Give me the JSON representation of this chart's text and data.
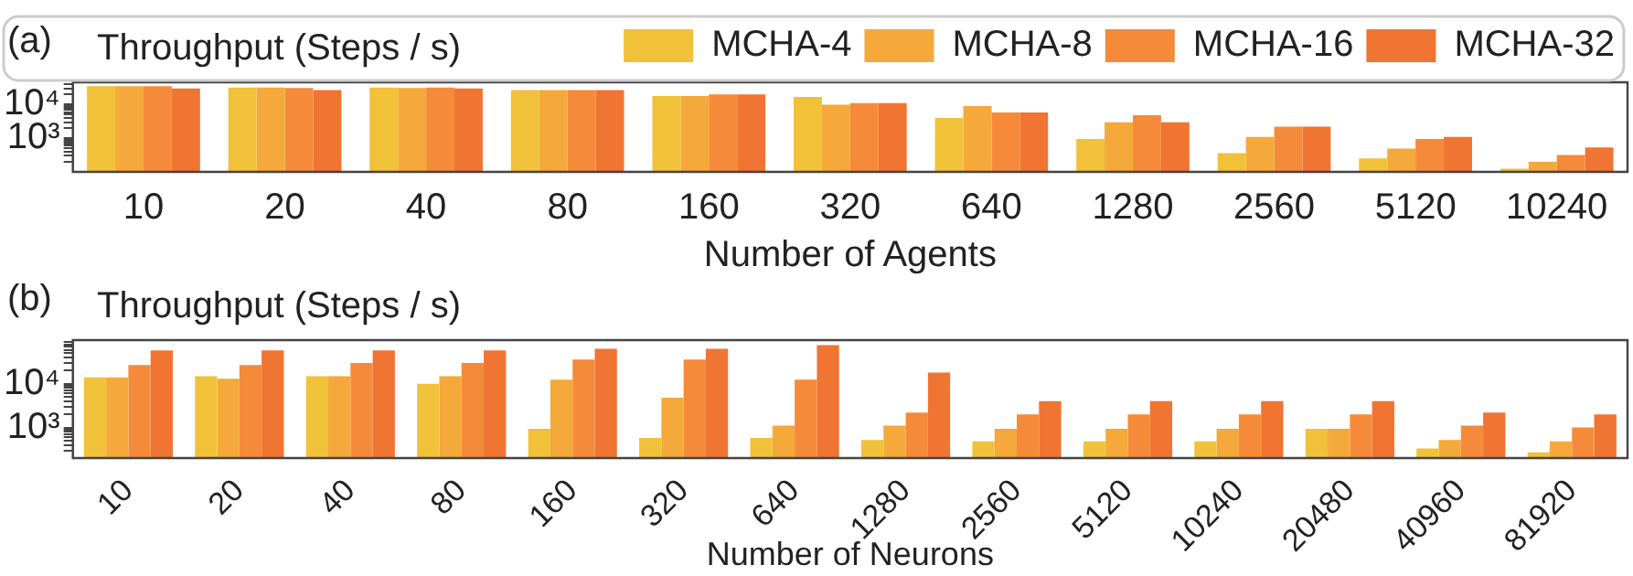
{
  "chart_data": [
    {
      "type": "bar",
      "title": "(a)",
      "ylabel": "Throughput (Steps / s)",
      "xlabel": "Number of Agents",
      "log": true,
      "legend": "top right",
      "categories": [
        "10",
        "20",
        "40",
        "80",
        "160",
        "320",
        "640",
        "1280",
        "2560",
        "5120",
        "10240"
      ],
      "ylim": [
        100,
        46000
      ],
      "yticks": [
        {
          "value": 200,
          "label": null
        },
        {
          "value": 300,
          "label": null
        },
        {
          "value": 400,
          "label": null
        },
        {
          "value": 500,
          "label": null
        },
        {
          "value": 600,
          "label": null
        },
        {
          "value": 700,
          "label": null
        },
        {
          "value": 800,
          "label": null
        },
        {
          "value": 900,
          "label": null
        },
        {
          "value": 1000,
          "label": "10³"
        },
        {
          "value": 2000,
          "label": null
        },
        {
          "value": 3000,
          "label": null
        },
        {
          "value": 4000,
          "label": null
        },
        {
          "value": 5000,
          "label": null
        },
        {
          "value": 6000,
          "label": null
        },
        {
          "value": 7000,
          "label": null
        },
        {
          "value": 8000,
          "label": null
        },
        {
          "value": 9000,
          "label": null
        },
        {
          "value": 10000,
          "label": "10⁴"
        },
        {
          "value": 20000,
          "label": null
        },
        {
          "value": 30000,
          "label": null
        },
        {
          "value": 40000,
          "label": null
        }
      ],
      "series": [
        {
          "name": "MCHA-4",
          "color": "#f2c13a",
          "values": [
            35000,
            32000,
            32000,
            27000,
            18000,
            17000,
            4000,
            950,
            360,
            250,
            125
          ]
        },
        {
          "name": "MCHA-8",
          "color": "#f4a93a",
          "values": [
            35000,
            32000,
            31000,
            27000,
            18000,
            10000,
            9000,
            3000,
            1100,
            490,
            200
          ]
        },
        {
          "name": "MCHA-16",
          "color": "#f58b3a",
          "values": [
            35000,
            31000,
            32000,
            27000,
            20000,
            11000,
            5800,
            4800,
            2200,
            950,
            320
          ]
        },
        {
          "name": "MCHA-32",
          "color": "#f07432",
          "values": [
            30000,
            27000,
            30000,
            27000,
            20000,
            11000,
            5800,
            3000,
            2200,
            1100,
            530
          ]
        }
      ]
    },
    {
      "type": "bar",
      "title": "(b)",
      "ylabel": "Throughput (Steps / s)",
      "xlabel": "Number of Neurons",
      "log": true,
      "categories": [
        "10",
        "20",
        "40",
        "80",
        "160",
        "320",
        "640",
        "1280",
        "2560",
        "5120",
        "10240",
        "20480",
        "40960",
        "81920"
      ],
      "ylim": [
        200,
        100000
      ],
      "yticks": [
        {
          "value": 300,
          "label": null
        },
        {
          "value": 400,
          "label": null
        },
        {
          "value": 500,
          "label": null
        },
        {
          "value": 600,
          "label": null
        },
        {
          "value": 700,
          "label": null
        },
        {
          "value": 800,
          "label": null
        },
        {
          "value": 900,
          "label": null
        },
        {
          "value": 1000,
          "label": "10³"
        },
        {
          "value": 2000,
          "label": null
        },
        {
          "value": 3000,
          "label": null
        },
        {
          "value": 4000,
          "label": null
        },
        {
          "value": 5000,
          "label": null
        },
        {
          "value": 6000,
          "label": null
        },
        {
          "value": 7000,
          "label": null
        },
        {
          "value": 8000,
          "label": null
        },
        {
          "value": 9000,
          "label": null
        },
        {
          "value": 10000,
          "label": "10⁴"
        },
        {
          "value": 20000,
          "label": null
        },
        {
          "value": 30000,
          "label": null
        },
        {
          "value": 40000,
          "label": null
        },
        {
          "value": 50000,
          "label": null
        },
        {
          "value": 60000,
          "label": null
        },
        {
          "value": 70000,
          "label": null
        },
        {
          "value": 80000,
          "label": null
        },
        {
          "value": 90000,
          "label": null
        }
      ],
      "series": [
        {
          "color": "#f2c13a",
          "values": [
            14000,
            15000,
            15000,
            10000,
            940,
            580,
            580,
            520,
            480,
            480,
            480,
            940,
            330,
            270
          ]
        },
        {
          "color": "#f4a93a",
          "values": [
            14000,
            13000,
            15000,
            15000,
            12500,
            4800,
            1100,
            1100,
            940,
            940,
            940,
            940,
            520,
            480
          ]
        },
        {
          "color": "#f58b3a",
          "values": [
            27000,
            27000,
            30000,
            30000,
            36000,
            36000,
            12500,
            2200,
            2000,
            2000,
            2000,
            2000,
            1100,
            1000
          ]
        },
        {
          "color": "#f07432",
          "values": [
            58000,
            58000,
            58000,
            58000,
            63000,
            63000,
            77000,
            18000,
            4000,
            4000,
            4000,
            4000,
            2200,
            2000
          ]
        }
      ]
    }
  ]
}
